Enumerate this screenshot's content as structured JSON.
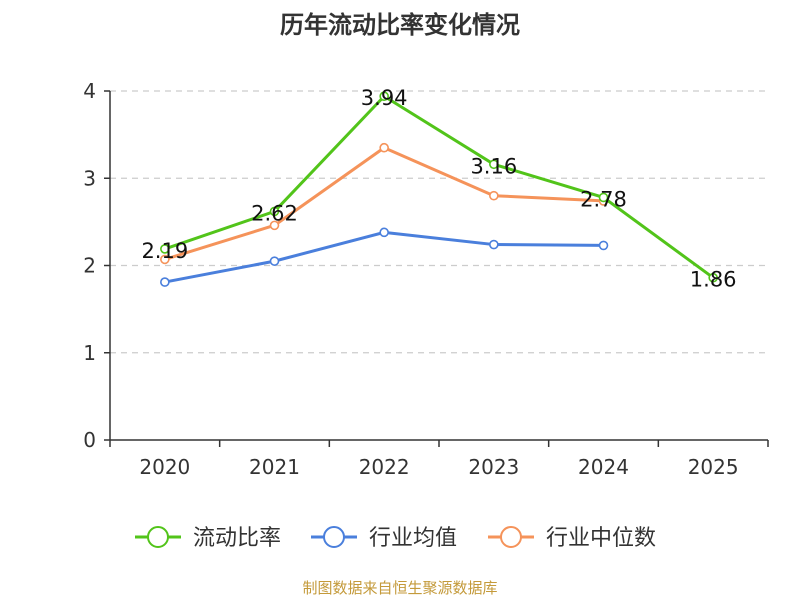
{
  "chart_data": {
    "type": "line",
    "title": "历年流动比率变化情况",
    "categories": [
      "2020",
      "2021",
      "2022",
      "2023",
      "2024",
      "2025"
    ],
    "y_ticks": [
      "0",
      "1",
      "2",
      "3",
      "4"
    ],
    "ylim": [
      0,
      4
    ],
    "grid": "horizontal dashed",
    "legend_position": "bottom",
    "series": [
      {
        "name": "流动比率",
        "color": "#52c41a",
        "values": [
          2.19,
          2.62,
          3.94,
          3.16,
          2.78,
          1.86
        ],
        "labels": [
          "2.19",
          "2.62",
          "3.94",
          "3.16",
          "2.78",
          "1.86"
        ]
      },
      {
        "name": "行业均值",
        "color": "#4a7fdc",
        "values": [
          1.81,
          2.05,
          2.38,
          2.24,
          2.23,
          null
        ]
      },
      {
        "name": "行业中位数",
        "color": "#f5935a",
        "values": [
          2.07,
          2.46,
          3.35,
          2.8,
          2.74,
          null
        ]
      }
    ],
    "source": "制图数据来自恒生聚源数据库"
  }
}
